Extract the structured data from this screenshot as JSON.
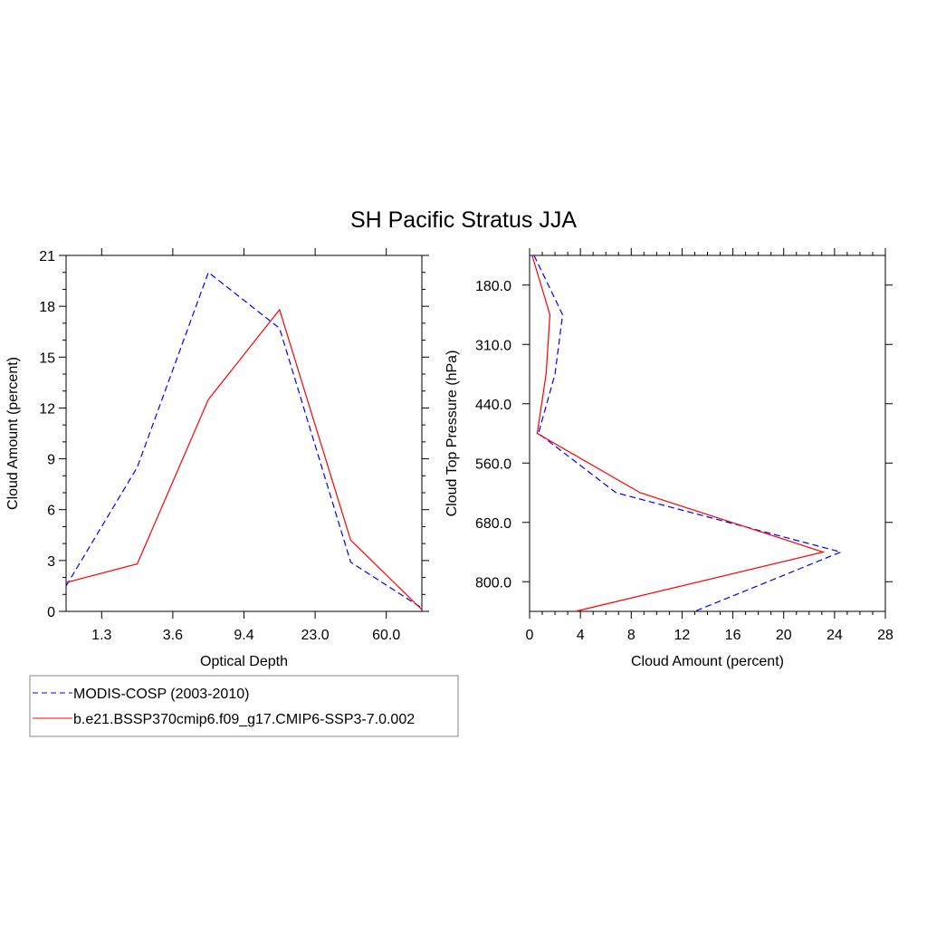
{
  "title": "SH Pacific Stratus JJA",
  "colors": {
    "obs": "#0000ff",
    "model": "#ff0000"
  },
  "legend": {
    "entries": [
      "MODIS-COSP (2003-2010)",
      "b.e21.BSSP370cmip6.f09_g17.CMIP6-SSP3-7.0.002"
    ]
  },
  "chart_data": [
    {
      "type": "line",
      "xlabel": "Optical Depth",
      "ylabel": "Cloud Amount (percent)",
      "ylim": [
        0,
        21
      ],
      "yticks": [
        "0",
        "3",
        "6",
        "9",
        "12",
        "15",
        "18",
        "21"
      ],
      "xtick_labels": [
        "1.3",
        "3.6",
        "9.4",
        "23.0",
        "60.0"
      ],
      "series": [
        {
          "name": "MODIS-COSP (2003-2010)",
          "style": "dashed",
          "values": [
            1.5,
            8.5,
            20.0,
            16.7,
            2.9,
            0.2
          ]
        },
        {
          "name": "b.e21.BSSP370cmip6.f09_g17.CMIP6-SSP3-7.0.002",
          "style": "solid",
          "values": [
            1.7,
            2.8,
            12.5,
            17.8,
            4.2,
            0.1
          ]
        }
      ]
    },
    {
      "type": "line",
      "xlabel": "Cloud Amount (percent)",
      "ylabel": "Cloud Top Pressure (hPa)",
      "xlim": [
        0,
        28
      ],
      "xticks": [
        "0",
        "4",
        "8",
        "12",
        "16",
        "20",
        "24",
        "28"
      ],
      "ytick_labels": [
        "180.0",
        "310.0",
        "440.0",
        "560.0",
        "680.0",
        "800.0"
      ],
      "series": [
        {
          "name": "MODIS-COSP (2003-2010)",
          "style": "dashed",
          "values": [
            0.35,
            2.6,
            2.0,
            0.7,
            6.8,
            24.5,
            13.0
          ]
        },
        {
          "name": "b.e21.BSSP370cmip6.f09_g17.CMIP6-SSP3-7.0.002",
          "style": "solid",
          "values": [
            0.2,
            1.6,
            1.3,
            0.6,
            8.7,
            23.1,
            3.6
          ]
        }
      ]
    }
  ]
}
